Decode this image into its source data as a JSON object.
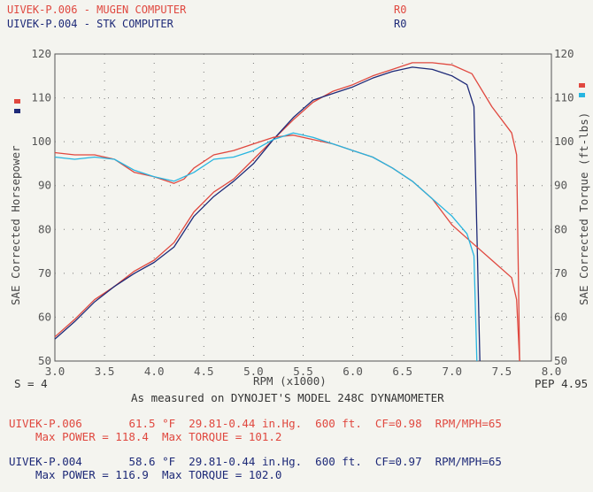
{
  "header": {
    "runs": [
      {
        "name": "UIVEK-P.006 - MUGEN COMPUTER",
        "code": "R0",
        "color": "#e0483f"
      },
      {
        "name": "UIVEK-P.004 - STK COMPUTER",
        "code": "R0",
        "color": "#1e2a78"
      }
    ]
  },
  "chart_data": {
    "type": "line",
    "xlabel": "RPM (x1000)",
    "ylabel_left": "SAE Corrected Horsepower",
    "ylabel_right": "SAE Corrected Torque (ft-lbs)",
    "xlim": [
      3.0,
      8.0
    ],
    "ylim": [
      50,
      120
    ],
    "x_ticks": [
      "3.0",
      "3.5",
      "4.0",
      "4.5",
      "5.0",
      "5.5",
      "6.0",
      "6.5",
      "7.0",
      "7.5",
      "8.0"
    ],
    "y_ticks": [
      "50",
      "60",
      "70",
      "80",
      "90",
      "100",
      "110",
      "120"
    ],
    "grid": "dotted",
    "legend_markers_left": [
      "#e0483f",
      "#1e2a78"
    ],
    "legend_markers_right": [
      "#e0483f",
      "#27b5e0"
    ],
    "series": [
      {
        "color": "#e0483f",
        "x": [
          3.0,
          3.2,
          3.4,
          3.6,
          3.8,
          4.0,
          4.2,
          4.4,
          4.6,
          4.8,
          5.0,
          5.2,
          5.4,
          5.6,
          5.8,
          6.0,
          6.2,
          6.4,
          6.6,
          6.8,
          7.0,
          7.2,
          7.4,
          7.6,
          7.65,
          7.68
        ],
        "values": [
          55.5,
          59.5,
          64.0,
          67.0,
          70.5,
          73.0,
          77.0,
          84.0,
          88.5,
          91.5,
          96.0,
          100.5,
          105.0,
          109.0,
          111.5,
          113.0,
          115.0,
          116.5,
          118.0,
          118.0,
          117.5,
          115.5,
          108.0,
          102.0,
          97.0,
          50.0
        ]
      },
      {
        "color": "#1e2a78",
        "x": [
          3.0,
          3.2,
          3.4,
          3.6,
          3.8,
          4.0,
          4.2,
          4.4,
          4.6,
          4.8,
          5.0,
          5.2,
          5.4,
          5.6,
          5.8,
          6.0,
          6.2,
          6.4,
          6.6,
          6.8,
          7.0,
          7.15,
          7.22,
          7.28
        ],
        "values": [
          55.0,
          59.0,
          63.5,
          67.0,
          70.0,
          72.5,
          76.0,
          83.0,
          87.5,
          91.0,
          95.0,
          100.5,
          105.5,
          109.5,
          111.0,
          112.5,
          114.5,
          116.0,
          117.0,
          116.5,
          115.0,
          113.0,
          108.0,
          50.0
        ]
      },
      {
        "color": "#e0483f",
        "x": [
          3.0,
          3.2,
          3.4,
          3.6,
          3.8,
          4.0,
          4.2,
          4.3,
          4.4,
          4.6,
          4.8,
          5.0,
          5.2,
          5.4,
          5.6,
          5.8,
          6.0,
          6.2,
          6.4,
          6.6,
          6.8,
          7.0,
          7.2,
          7.4,
          7.6,
          7.65,
          7.68
        ],
        "values": [
          97.5,
          97.0,
          97.0,
          96.0,
          93.0,
          92.0,
          90.5,
          91.5,
          94.0,
          97.0,
          98.0,
          99.5,
          101.0,
          101.5,
          100.5,
          99.5,
          98.0,
          96.5,
          94.0,
          91.0,
          87.0,
          81.0,
          77.0,
          73.0,
          69.0,
          64.0,
          50.0
        ]
      },
      {
        "color": "#27b5e0",
        "x": [
          3.0,
          3.2,
          3.4,
          3.6,
          3.8,
          4.0,
          4.2,
          4.4,
          4.6,
          4.8,
          5.0,
          5.2,
          5.4,
          5.6,
          5.8,
          6.0,
          6.2,
          6.4,
          6.6,
          6.8,
          7.0,
          7.15,
          7.22,
          7.25
        ],
        "values": [
          96.5,
          96.0,
          96.5,
          96.0,
          93.5,
          92.0,
          91.0,
          93.0,
          96.0,
          96.5,
          98.0,
          100.5,
          102.0,
          101.0,
          99.5,
          98.0,
          96.5,
          94.0,
          91.0,
          87.0,
          83.0,
          79.0,
          74.0,
          50.0
        ]
      }
    ]
  },
  "axis": {
    "left_label": "SAE Corrected Horsepower",
    "right_label": "SAE Corrected Torque (ft-lbs)",
    "x_label": "RPM (x1000)"
  },
  "footer": {
    "smoothing": "S = 4",
    "pep": "PEP 4.95",
    "measured": "As measured on DYNOJET'S MODEL 248C DYNAMOMETER",
    "run1_line1": "UIVEK-P.006       61.5 °F  29.81-0.44 in.Hg.  600 ft.  CF=0.98  RPM/MPH=65",
    "run1_line2": "Max POWER = 118.4  Max TORQUE = 101.2",
    "run2_line1": "UIVEK-P.004       58.6 °F  29.81-0.44 in.Hg.  600 ft.  CF=0.97  RPM/MPH=65",
    "run2_line2": "Max POWER = 116.9  Max TORQUE = 102.0"
  }
}
